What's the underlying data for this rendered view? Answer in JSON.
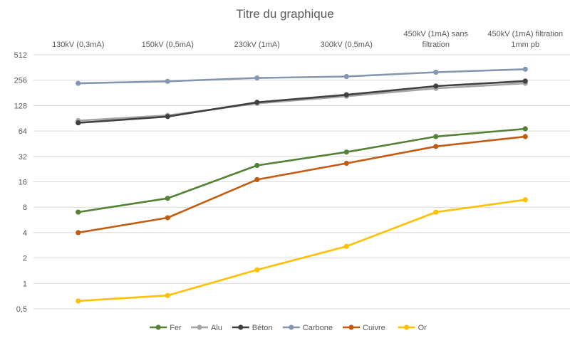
{
  "chart_data": {
    "type": "line",
    "title": "Titre du graphique",
    "categories": [
      [
        "130kV (0,3mA)"
      ],
      [
        "150kV (0,5mA)"
      ],
      [
        "230kV (1mA)"
      ],
      [
        "300kV (0,5mA)"
      ],
      [
        "450kV (1mA) sans",
        "filtration"
      ],
      [
        "450kV (1mA) filtration",
        "1mm pb"
      ]
    ],
    "y_scale": "log2",
    "ylim": [
      0.375,
      512
    ],
    "y_ticks": [
      0.5,
      1,
      2,
      4,
      8,
      16,
      32,
      64,
      128,
      256,
      512
    ],
    "y_tick_labels": [
      "0,5",
      "1",
      "2",
      "4",
      "8",
      "16",
      "32",
      "64",
      "128",
      "256",
      "512"
    ],
    "x_axis_position": "top",
    "grid": true,
    "legend_position": "bottom",
    "series": [
      {
        "name": "Fer",
        "color": "#548235",
        "values": [
          7,
          10.2,
          25,
          36,
          55,
          68
        ]
      },
      {
        "name": "Alu",
        "color": "#a5a5a5",
        "values": [
          85,
          98,
          136,
          165,
          205,
          235
        ]
      },
      {
        "name": "Béton",
        "color": "#404040",
        "values": [
          80,
          95,
          140,
          172,
          218,
          250
        ]
      },
      {
        "name": "Carbone",
        "color": "#8497b0",
        "values": [
          235,
          248,
          272,
          283,
          318,
          345
        ]
      },
      {
        "name": "Cuivre",
        "color": "#c55a11",
        "values": [
          4,
          6,
          17,
          26.5,
          42,
          55
        ]
      },
      {
        "name": "Or",
        "color": "#ffc000",
        "values": [
          0.62,
          0.72,
          1.45,
          2.75,
          7,
          9.8
        ]
      }
    ]
  }
}
